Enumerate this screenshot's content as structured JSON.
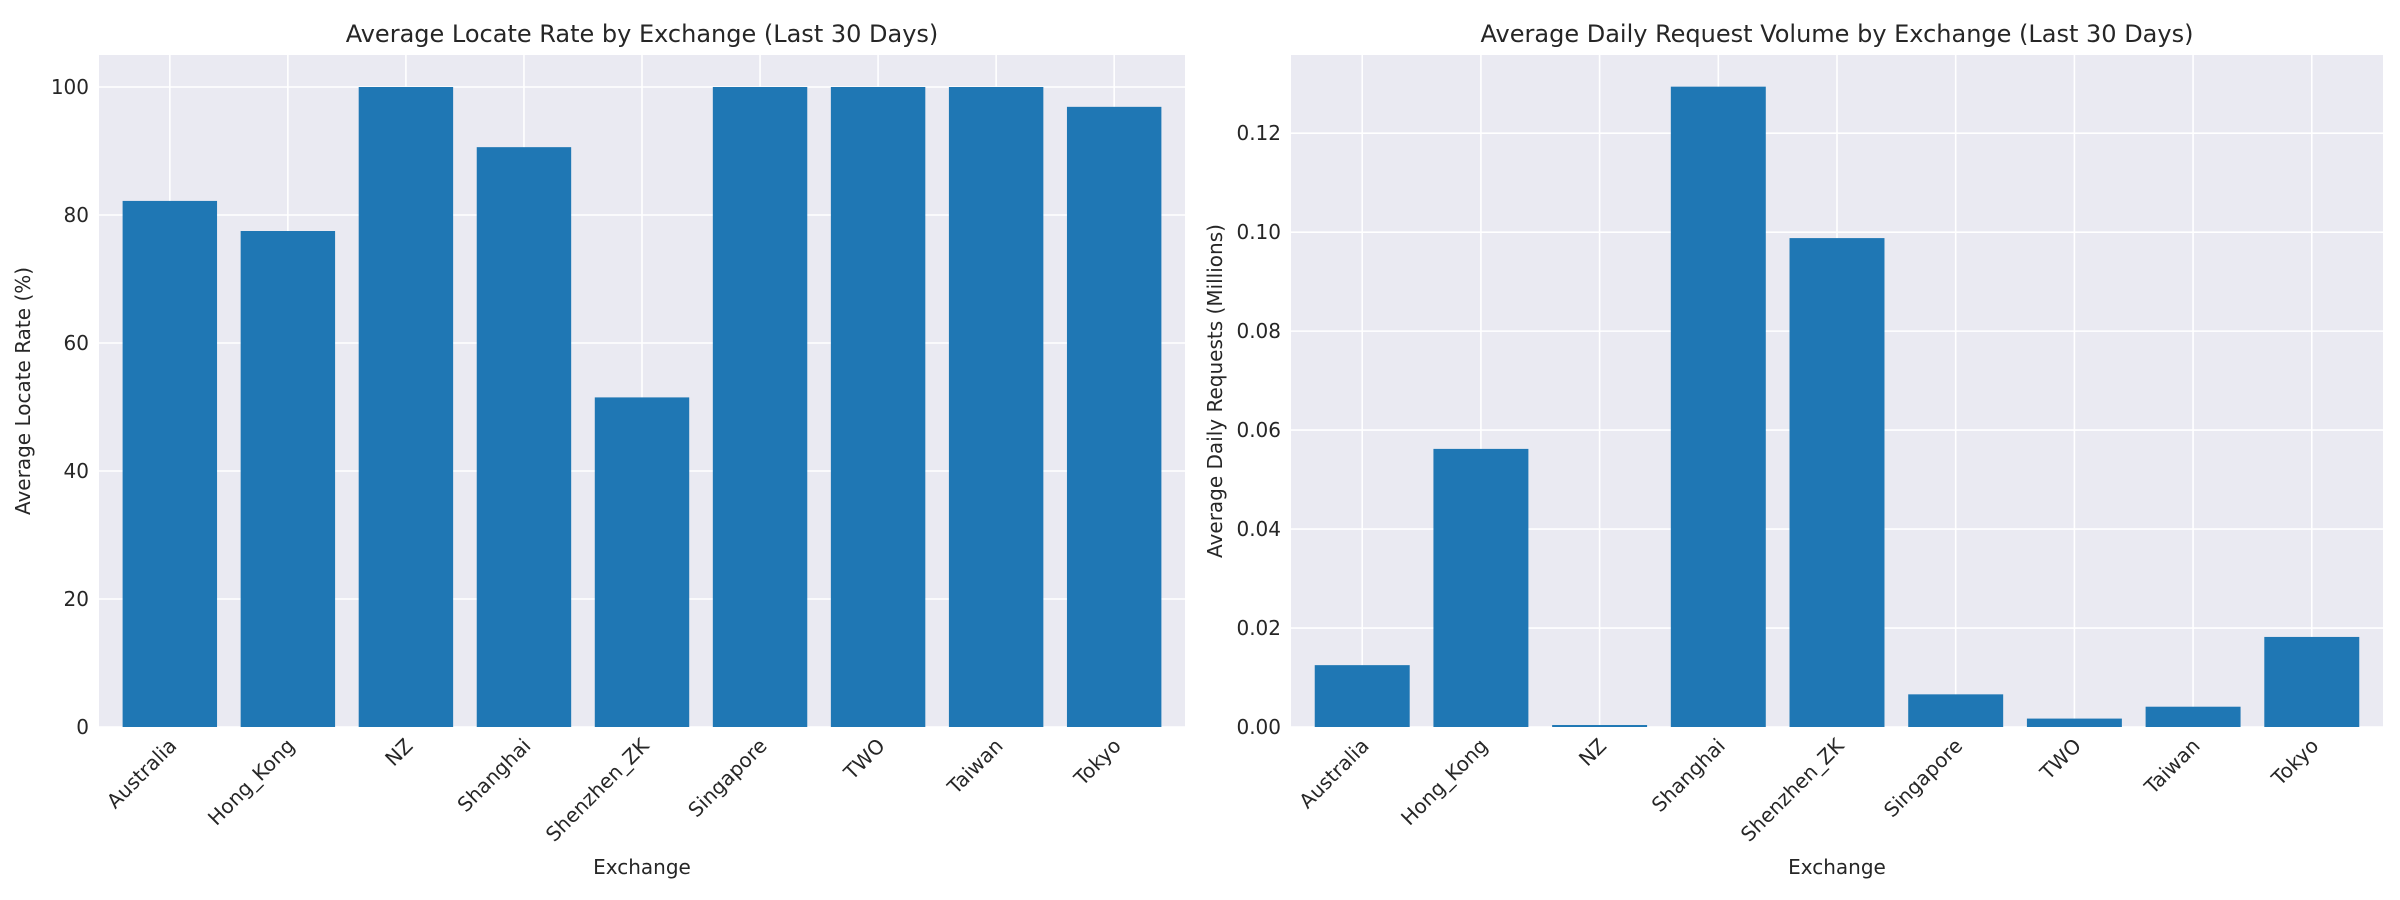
{
  "chart_data": [
    {
      "type": "bar",
      "title": "Average Locate Rate by Exchange (Last 30 Days)",
      "xlabel": "Exchange",
      "ylabel": "Average Locate Rate (%)",
      "categories": [
        "Australia",
        "Hong_Kong",
        "NZ",
        "Shanghai",
        "Shenzhen_ZK",
        "Singapore",
        "TWO",
        "Taiwan",
        "Tokyo"
      ],
      "values": [
        82.2,
        77.5,
        100,
        90.6,
        51.5,
        100,
        100,
        100,
        96.9
      ],
      "ylim": [
        0,
        105
      ],
      "yticks": [
        0,
        20,
        40,
        60,
        80,
        100
      ],
      "ytick_labels": [
        "0",
        "20",
        "40",
        "60",
        "80",
        "100"
      ],
      "grid": true,
      "color": "#1f77b4",
      "background": "#eaeaf2"
    },
    {
      "type": "bar",
      "title": "Average Daily Request Volume by Exchange (Last 30 Days)",
      "xlabel": "Exchange",
      "ylabel": "Average Daily Requests (Millions)",
      "categories": [
        "Australia",
        "Hong_Kong",
        "NZ",
        "Shanghai",
        "Shenzhen_ZK",
        "Singapore",
        "TWO",
        "Taiwan",
        "Tokyo"
      ],
      "values": [
        0.0125,
        0.0562,
        0.0004,
        0.1294,
        0.0988,
        0.0066,
        0.0017,
        0.0041,
        0.0182
      ],
      "ylim": [
        0,
        0.1358
      ],
      "yticks": [
        0,
        0.02,
        0.04,
        0.06,
        0.08,
        0.1,
        0.12
      ],
      "ytick_labels": [
        "0.00",
        "0.02",
        "0.04",
        "0.06",
        "0.08",
        "0.10",
        "0.12"
      ],
      "grid": true,
      "color": "#1f77b4",
      "background": "#eaeaf2"
    }
  ]
}
